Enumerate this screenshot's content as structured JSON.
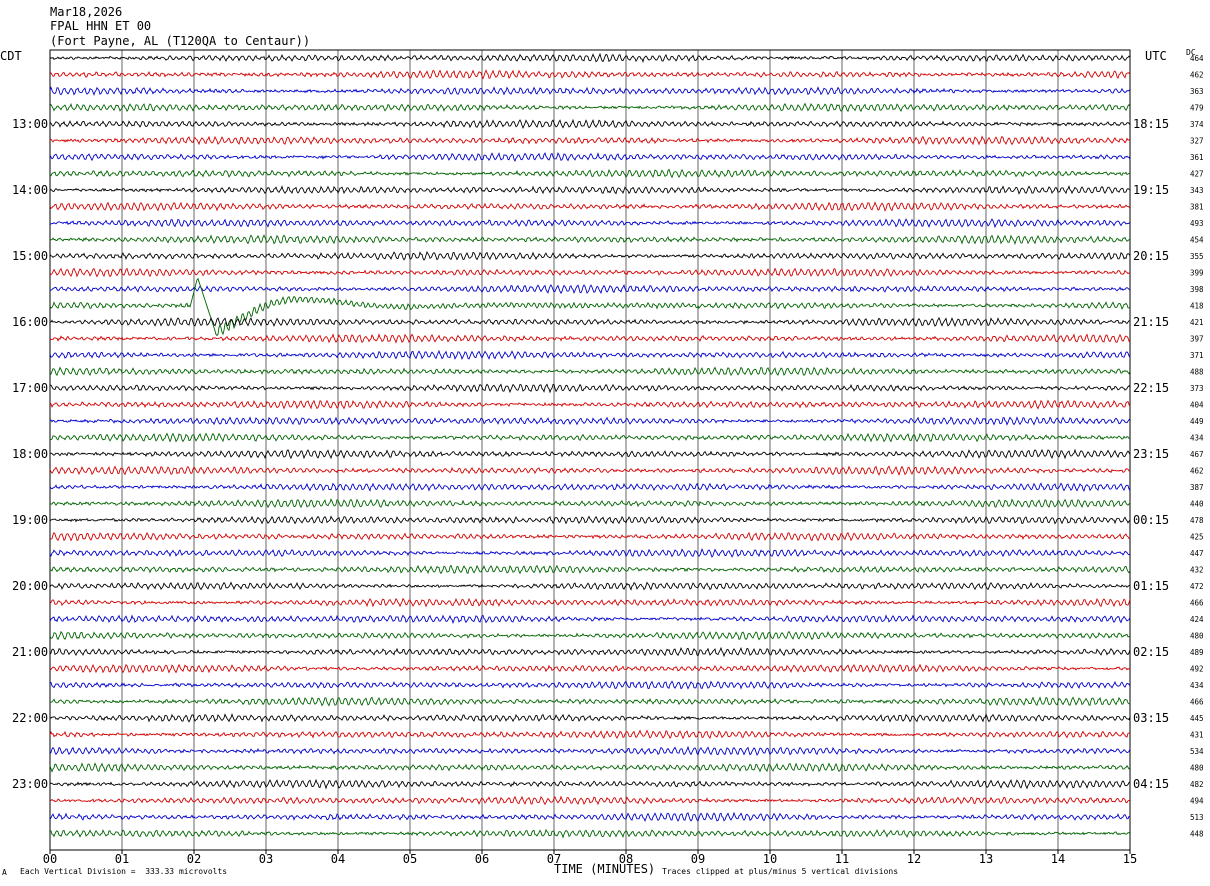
{
  "header": {
    "date": "Mar18,2026",
    "station": "FPAL HHN ET 00",
    "location": "(Fort Payne, AL (T120QA to Centaur))"
  },
  "left_zone_label": "CDT",
  "right_zone_label": "UTC",
  "dc_label": "DC",
  "footer": {
    "left_mark": "A",
    "scale_note": "Each Vertical Division =  333.33 microvolts",
    "clip_note": "Traces clipped at plus/minus 5 vertical divisions"
  },
  "colors": {
    "trace_cycle": [
      "#000000",
      "#d40000",
      "#0000cc",
      "#006400"
    ],
    "grid": "#000000",
    "background": "#ffffff"
  },
  "chart_data": {
    "type": "line",
    "subtype": "helicorder",
    "xlabel": "TIME (MINUTES)",
    "xlim": [
      0,
      15
    ],
    "x_ticks": [
      "00",
      "01",
      "02",
      "03",
      "04",
      "05",
      "06",
      "07",
      "08",
      "09",
      "10",
      "11",
      "12",
      "13",
      "14",
      "15"
    ],
    "grid": "vertical lines every minute",
    "rows_per_hour": 4,
    "row_minutes": 15,
    "left_hour_labels": [
      "13:00",
      "14:00",
      "15:00",
      "16:00",
      "17:00",
      "18:00",
      "19:00",
      "20:00",
      "21:00",
      "22:00",
      "23:00"
    ],
    "right_hour_labels": [
      "18:15",
      "19:15",
      "20:15",
      "21:15",
      "22:15",
      "23:15",
      "00:15",
      "01:15",
      "02:15",
      "03:15",
      "04:15"
    ],
    "dc_offsets": [
      464,
      462,
      363,
      479,
      374,
      327,
      361,
      427,
      343,
      381,
      493,
      454,
      355,
      399,
      398,
      418,
      421,
      397,
      371,
      488,
      373,
      404,
      449,
      434,
      467,
      462,
      387,
      440,
      478,
      425,
      447,
      432,
      472,
      466,
      424,
      480,
      489,
      492,
      434,
      466,
      445,
      431,
      534,
      480,
      482,
      494,
      513,
      448
    ],
    "events": [
      {
        "row": 15,
        "start_minute": 1.95,
        "end_minute": 9.0,
        "description": "earthquake"
      }
    ]
  }
}
